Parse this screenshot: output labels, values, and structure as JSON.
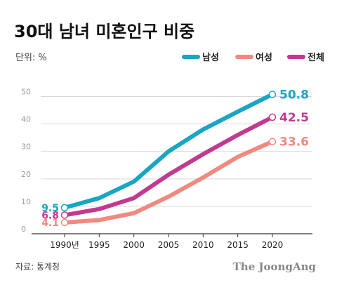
{
  "title": "30대 남녀 미혼인구 비중",
  "unit_label": "단위: %",
  "source": "자료: 통계청",
  "brand": "The JoongAng",
  "colors": {
    "male": "#1aa5c4",
    "female": "#f08a80",
    "total": "#c23a8f",
    "grid": "#d9d9d9",
    "axis": "#333333"
  },
  "chart_data": {
    "type": "line",
    "title": "30대 남녀 미혼인구 비중",
    "ylabel": "단위: %",
    "x": [
      1990,
      1995,
      2000,
      2005,
      2010,
      2015,
      2020
    ],
    "x_tick_labels": [
      "1990년",
      "1995",
      "2000",
      "2005",
      "2010",
      "2015",
      "2020"
    ],
    "y_ticks": [
      0,
      10,
      20,
      30,
      40,
      50
    ],
    "ylim": [
      0,
      55
    ],
    "grid": true,
    "legend_position": "top-right",
    "series": [
      {
        "key": "male",
        "name": "남성",
        "color": "#1aa5c4",
        "values": [
          9.5,
          13.0,
          19.0,
          30.0,
          38.0,
          44.5,
          50.8
        ],
        "start_label": "9.5",
        "end_label": "50.8"
      },
      {
        "key": "female",
        "name": "여성",
        "color": "#f08a80",
        "values": [
          4.1,
          5.0,
          7.5,
          13.5,
          20.5,
          28.0,
          33.6
        ],
        "start_label": "4.1",
        "end_label": "33.6"
      },
      {
        "key": "total",
        "name": "전체",
        "color": "#c23a8f",
        "values": [
          6.8,
          9.0,
          13.0,
          21.5,
          29.0,
          36.0,
          42.5
        ],
        "start_label": "6.8",
        "end_label": "42.5"
      }
    ]
  }
}
